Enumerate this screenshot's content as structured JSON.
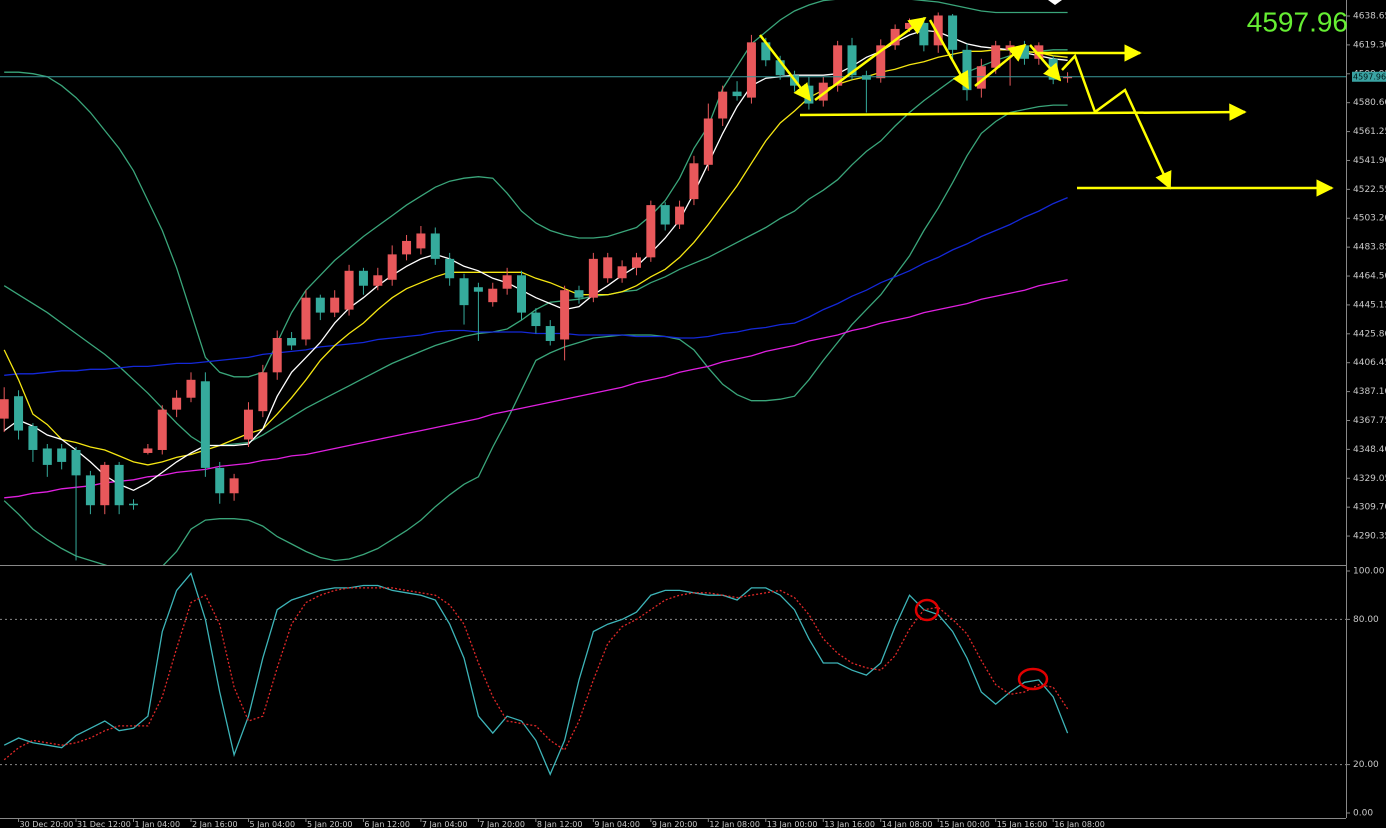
{
  "chart_data": [
    {
      "type": "candlestick",
      "current_price": 4597.96,
      "up_color": "#e8585b",
      "down_color": "#35ab9c",
      "ylim": [
        4270.96,
        4649.37
      ],
      "yticks": [
        4638.65,
        {
          "value": 4619.3,
          "label": "4619.30"
        },
        4599.95,
        {
          "value": 4580.6,
          "label": "4580.60"
        },
        4561.25,
        {
          "value": 4541.9,
          "label": "4541.90"
        },
        4522.55,
        {
          "value": 4503.2,
          "label": "4503.20"
        },
        4483.85,
        {
          "value": 4464.5,
          "label": "4464.50"
        },
        4445.15,
        {
          "value": 4425.8,
          "label": "4425.80"
        },
        4406.45,
        {
          "value": 4387.1,
          "label": "4387.10"
        },
        4367.75,
        {
          "value": 4348.4,
          "label": "4348.40"
        },
        4329.05,
        {
          "value": 4309.7,
          "label": "4309.70"
        },
        4290.35
      ],
      "categories": [
        null,
        "30 Dec 20:00",
        null,
        null,
        null,
        "31 Dec 12:00",
        null,
        null,
        null,
        "1 Jan 04:00",
        null,
        null,
        null,
        "2 Jan 16:00",
        null,
        null,
        null,
        "5 Jan 04:00",
        null,
        null,
        null,
        "5 Jan 20:00",
        null,
        null,
        null,
        "6 Jan 12:00",
        null,
        null,
        null,
        "7 Jan 04:00",
        null,
        null,
        null,
        "7 Jan 20:00",
        null,
        null,
        null,
        "8 Jan 12:00",
        null,
        null,
        null,
        "9 Jan 04:00",
        null,
        null,
        null,
        "9 Jan 20:00",
        null,
        null,
        null,
        "12 Jan 08:00",
        null,
        null,
        null,
        "13 Jan 00:00",
        null,
        null,
        null,
        "13 Jan 16:00",
        null,
        null,
        null,
        "14 Jan 08:00",
        null,
        null,
        null,
        "15 Jan 00:00",
        null,
        null,
        null,
        "15 Jan 16:00",
        null,
        null,
        null,
        "16 Jan 08:00",
        null
      ],
      "open": [
        4369,
        4384,
        4364,
        4349,
        4349,
        4348,
        4331,
        4311,
        4338,
        4312,
        4346,
        4348,
        4375,
        4383,
        4394,
        4336,
        4319,
        4355,
        4374,
        4400,
        4423,
        4422,
        4450,
        4440,
        4442,
        4468,
        4458,
        4462,
        4479,
        4483,
        4493,
        4476,
        4463,
        4457,
        4447,
        4456,
        4465,
        4440,
        4431,
        4422,
        4455,
        4450,
        4463,
        4463,
        4470,
        4477,
        4512,
        4499,
        4516,
        4539,
        4570,
        4588,
        4584,
        4621,
        4609,
        4599,
        4592,
        4582,
        4592,
        4619,
        4599,
        4597,
        4619,
        4630,
        4634,
        4619,
        4639,
        4616,
        4590,
        4604,
        4616,
        4619,
        4610,
        4610,
        4597
      ],
      "high": [
        4390,
        4388,
        4366,
        4352,
        4352,
        4350,
        4334,
        4340,
        4340,
        4315,
        4352,
        4378,
        4388,
        4400,
        4400,
        4340,
        4332,
        4380,
        4405,
        4428,
        4427,
        4455,
        4452,
        4455,
        4472,
        4470,
        4470,
        4485,
        4492,
        4498,
        4497,
        4480,
        4466,
        4460,
        4460,
        4470,
        4468,
        4443,
        4435,
        4458,
        4458,
        4480,
        4480,
        4475,
        4480,
        4515,
        4514,
        4515,
        4545,
        4580,
        4592,
        4595,
        4626,
        4624,
        4612,
        4602,
        4598,
        4598,
        4622,
        4624,
        4602,
        4623,
        4633,
        4637,
        4638,
        4641,
        4640,
        4620,
        4610,
        4622,
        4622,
        4622,
        4621,
        4612,
        4601
      ],
      "low": [
        4360,
        4355,
        4340,
        4330,
        4335,
        4274,
        4305,
        4305,
        4305,
        4308,
        4345,
        4345,
        4370,
        4380,
        4330,
        4312,
        4314,
        4350,
        4370,
        4395,
        4415,
        4418,
        4435,
        4437,
        4438,
        4452,
        4455,
        4458,
        4475,
        4479,
        4472,
        4458,
        4432,
        4421,
        4444,
        4452,
        4435,
        4426,
        4418,
        4408,
        4446,
        4447,
        4460,
        4460,
        4465,
        4474,
        4495,
        4496,
        4512,
        4535,
        4565,
        4582,
        4580,
        4605,
        4596,
        4588,
        4576,
        4578,
        4588,
        4596,
        4574,
        4594,
        4616,
        4628,
        4615,
        4614,
        4610,
        4582,
        4584,
        4600,
        4592,
        4606,
        4606,
        4593,
        4594
      ],
      "close": [
        4382,
        4361,
        4348,
        4338,
        4340,
        4331,
        4311,
        4338,
        4311,
        4311,
        4349,
        4375,
        4383,
        4395,
        4336,
        4319,
        4329,
        4375,
        4400,
        4423,
        4418,
        4450,
        4440,
        4450,
        4468,
        4458,
        4465,
        4479,
        4488,
        4493,
        4476,
        4463,
        4445,
        4454,
        4456,
        4465,
        4440,
        4431,
        4421,
        4455,
        4450,
        4476,
        4477,
        4471,
        4477,
        4512,
        4499,
        4511,
        4540,
        4570,
        4588,
        4585,
        4621,
        4609,
        4599,
        4592,
        4580,
        4594,
        4619,
        4599,
        4596,
        4619,
        4630,
        4634,
        4619,
        4639,
        4616,
        4589,
        4605,
        4619,
        4619,
        4610,
        4619,
        4596,
        4598
      ],
      "series": [
        {
          "color": "#3aa57a",
          "values": [
            4601,
            4601,
            4600,
            4598,
            4592,
            4584,
            4574,
            4562,
            4550,
            4535,
            4515,
            4495,
            4470,
            4440,
            4410,
            4400,
            4397,
            4397,
            4400,
            4420,
            4440,
            4455,
            4465,
            4475,
            4483,
            4491,
            4498,
            4505,
            4512,
            4518,
            4524,
            4528,
            4530,
            4531,
            4530,
            4520,
            4508,
            4500,
            4495,
            4492,
            4490,
            4490,
            4491,
            4494,
            4497,
            4505,
            4515,
            4530,
            4550,
            4565,
            4590,
            4605,
            4620,
            4628,
            4636,
            4642,
            4646,
            4649,
            4650,
            4651,
            4651,
            4651,
            4650,
            4650,
            4649,
            4648,
            4646,
            4644,
            4642,
            4641,
            4641,
            4641,
            4641,
            4641,
            4641
          ]
        },
        {
          "color": "#3aa57a",
          "values": [
            4458,
            4452,
            4446,
            4440,
            4433,
            4426,
            4419,
            4412,
            4404,
            4395,
            4386,
            4376,
            4366,
            4357,
            4351,
            4351,
            4352,
            4353,
            4358,
            4364,
            4370,
            4376,
            4381,
            4386,
            4391,
            4396,
            4401,
            4406,
            4410,
            4414,
            4418,
            4421,
            4424,
            4426,
            4427,
            4429,
            4435,
            4442,
            4447,
            4448,
            4449,
            4451,
            4452,
            4454,
            4455,
            4460,
            4464,
            4469,
            4473,
            4477,
            4482,
            4487,
            4492,
            4497,
            4503,
            4508,
            4516,
            4522,
            4529,
            4539,
            4548,
            4555,
            4565,
            4574,
            4582,
            4589,
            4596,
            4601,
            4605,
            4609,
            4612,
            4614,
            4615,
            4616,
            4616
          ]
        },
        {
          "color": "#3aa57a",
          "values": [
            4314,
            4305,
            4295,
            4288,
            4282,
            4277,
            4274,
            4271,
            4268,
            4266,
            4266,
            4270,
            4280,
            4295,
            4301,
            4302,
            4302,
            4301,
            4297,
            4290,
            4285,
            4280,
            4276,
            4274,
            4275,
            4278,
            4282,
            4288,
            4294,
            4301,
            4310,
            4318,
            4325,
            4330,
            4350,
            4368,
            4388,
            4408,
            4413,
            4417,
            4420,
            4423,
            4424,
            4425,
            4425,
            4425,
            4424,
            4422,
            4415,
            4403,
            4392,
            4385,
            4381,
            4381,
            4382,
            4384,
            4395,
            4408,
            4420,
            4432,
            4442,
            4452,
            4465,
            4478,
            4495,
            4510,
            4527,
            4545,
            4560,
            4568,
            4574,
            4576,
            4578,
            4579,
            4579
          ]
        },
        {
          "color": "#1428d8",
          "values": [
            4398,
            4399,
            4399,
            4400,
            4401,
            4401,
            4402,
            4402,
            4403,
            4404,
            4404,
            4405,
            4406,
            4406,
            4407,
            4408,
            4409,
            4410,
            4412,
            4413,
            4414,
            4415,
            4417,
            4418,
            4419,
            4420,
            4422,
            4423,
            4424,
            4425,
            4427,
            4428,
            4428,
            4427,
            4427,
            4427,
            4427,
            4426,
            4426,
            4426,
            4425,
            4425,
            4425,
            4425,
            4424,
            4424,
            4424,
            4423,
            4423,
            4424,
            4426,
            4427,
            4429,
            4430,
            4432,
            4433,
            4437,
            4442,
            4446,
            4451,
            4455,
            4460,
            4464,
            4468,
            4473,
            4477,
            4482,
            4486,
            4491,
            4495,
            4499,
            4504,
            4508,
            4513,
            4517
          ]
        },
        {
          "color": "#e020e0",
          "values": [
            4316,
            4317,
            4319,
            4320,
            4322,
            4323,
            4324,
            4326,
            4327,
            4328,
            4330,
            4331,
            4333,
            4334,
            4335,
            4337,
            4338,
            4339,
            4341,
            4342,
            4344,
            4345,
            4347,
            4349,
            4351,
            4353,
            4355,
            4357,
            4359,
            4361,
            4363,
            4365,
            4367,
            4369,
            4372,
            4374,
            4376,
            4378,
            4380,
            4382,
            4384,
            4386,
            4388,
            4390,
            4393,
            4395,
            4397,
            4400,
            4402,
            4404,
            4407,
            4409,
            4411,
            4414,
            4416,
            4418,
            4421,
            4423,
            4425,
            4428,
            4430,
            4433,
            4435,
            4437,
            4440,
            4442,
            4444,
            4446,
            4449,
            4451,
            4453,
            4455,
            4458,
            4460,
            4462
          ]
        },
        {
          "color": "#f5e612",
          "values": [
            4415,
            4395,
            4372,
            4365,
            4355,
            4353,
            4350,
            4348,
            4344,
            4340,
            4338,
            4340,
            4343,
            4345,
            4348,
            4351,
            4355,
            4359,
            4362,
            4372,
            4383,
            4395,
            4408,
            4418,
            4426,
            4433,
            4442,
            4450,
            4456,
            4460,
            4464,
            4467,
            4467,
            4467,
            4467,
            4467,
            4467,
            4463,
            4460,
            4456,
            4452,
            4452,
            4452,
            4454,
            4458,
            4464,
            4469,
            4477,
            4487,
            4499,
            4512,
            4525,
            4540,
            4555,
            4567,
            4575,
            4584,
            4589,
            4593,
            4596,
            4598,
            4601,
            4603,
            4606,
            4608,
            4611,
            4613,
            4615,
            4615,
            4616,
            4616,
            4615,
            4614,
            4612,
            4611
          ]
        },
        {
          "color": "#ffffff",
          "values": [
            4361,
            4368,
            4364,
            4358,
            4355,
            4348,
            4340,
            4331,
            4325,
            4321,
            4326,
            4333,
            4340,
            4346,
            4351,
            4351,
            4351,
            4352,
            4362,
            4384,
            4400,
            4410,
            4420,
            4433,
            4443,
            4450,
            4458,
            4465,
            4471,
            4476,
            4479,
            4476,
            4471,
            4468,
            4463,
            4460,
            4455,
            4450,
            4446,
            4442,
            4444,
            4452,
            4458,
            4465,
            4471,
            4480,
            4490,
            4502,
            4520,
            4540,
            4560,
            4578,
            4592,
            4597,
            4598,
            4599,
            4599,
            4599,
            4600,
            4605,
            4611,
            4615,
            4621,
            4626,
            4629,
            4628,
            4624,
            4620,
            4618,
            4617,
            4616,
            4614,
            4612,
            4610,
            4609
          ]
        }
      ]
    },
    {
      "type": "line",
      "ylim": [
        -2.07,
        101.65
      ],
      "yticks": [
        {
          "value": 100,
          "label": "100.00"
        },
        {
          "value": 80,
          "label": "80.00"
        },
        {
          "value": 20,
          "label": "20.00"
        },
        {
          "value": 0,
          "label": "0.00"
        }
      ],
      "series": [
        {
          "color": "#3db4b8",
          "dashed": false,
          "values": [
            28,
            31,
            29,
            28,
            27,
            32,
            35,
            38,
            34,
            35,
            40,
            75,
            92,
            99,
            80,
            50,
            24,
            40,
            64,
            84,
            88,
            90,
            92,
            93,
            93,
            94,
            94,
            92,
            91,
            90,
            88,
            78,
            64,
            40,
            33,
            40,
            38,
            30,
            16,
            30,
            55,
            75,
            78,
            80,
            83,
            90,
            92,
            92,
            91,
            90,
            90,
            88,
            93,
            93,
            90,
            84,
            72,
            62,
            62,
            59,
            57,
            62,
            77,
            90,
            84,
            82,
            75,
            64,
            50,
            45,
            50,
            54,
            55,
            48,
            33
          ]
        },
        {
          "color": "#e02828",
          "dashed": true,
          "values": [
            22,
            27,
            30,
            29,
            28,
            29,
            31,
            34,
            36,
            36,
            36,
            48,
            68,
            87,
            90,
            78,
            52,
            38,
            40,
            60,
            78,
            87,
            90,
            92,
            93,
            93,
            93,
            93,
            92,
            91,
            90,
            86,
            78,
            62,
            48,
            38,
            37,
            36,
            30,
            26,
            38,
            55,
            70,
            77,
            80,
            84,
            88,
            90,
            91,
            91,
            90,
            89,
            90,
            91,
            92,
            89,
            82,
            72,
            66,
            62,
            60,
            59,
            65,
            76,
            84,
            85,
            80,
            74,
            63,
            53,
            49,
            50,
            53,
            52,
            43
          ]
        }
      ]
    }
  ]
}
